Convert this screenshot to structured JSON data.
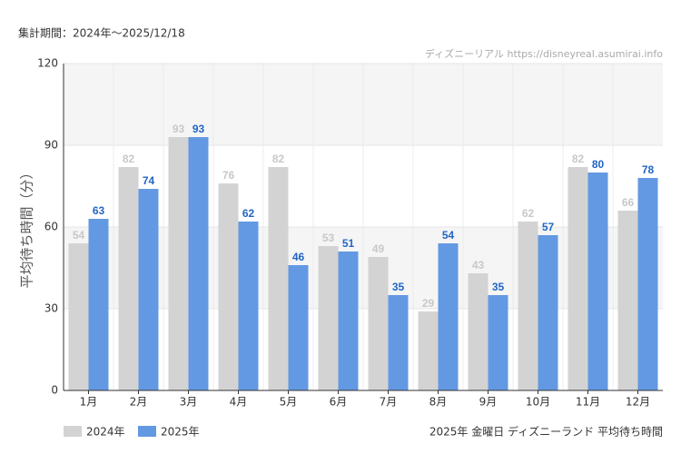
{
  "chart_data": {
    "type": "bar",
    "subtitle": "集計期間：2024年～2025/12/18",
    "watermark": "ディズニーリアル https://disneyreal.asumirai.info",
    "y_label": "平均待ち時間（分）",
    "caption": "2025年 金曜日 ディズニーランド 平均待ち時間",
    "categories": [
      "1月",
      "2月",
      "3月",
      "4月",
      "5月",
      "6月",
      "7月",
      "8月",
      "9月",
      "10月",
      "11月",
      "12月"
    ],
    "series": [
      {
        "name": "2024年",
        "color": "#d3d3d3",
        "label_color": "#c8c8c8",
        "values": [
          54,
          82,
          93,
          76,
          82,
          53,
          49,
          29,
          43,
          62,
          82,
          66
        ]
      },
      {
        "name": "2025年",
        "color": "#6399e3",
        "label_color": "#2166c4",
        "values": [
          63,
          74,
          93,
          62,
          46,
          51,
          35,
          54,
          35,
          57,
          80,
          78
        ]
      }
    ],
    "ylim": [
      0,
      120
    ],
    "yticks": [
      0,
      30,
      60,
      90,
      120
    ],
    "grid": true
  }
}
